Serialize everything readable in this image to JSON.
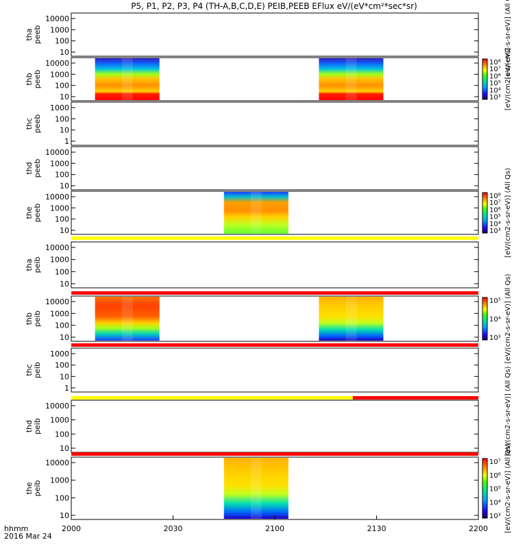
{
  "title": "P5, P1, P2, P3, P4 (TH-A,B,C,D,E) PEIB,PEEB EFlux eV/(eV*cm²*sec*sr)",
  "time_axis": {
    "ticks": [
      "2000",
      "2030",
      "2100",
      "2130",
      "2200"
    ],
    "corner_label_1": "hhmm",
    "corner_label_2": "2016 Mar 24"
  },
  "chart_data": {
    "type": "heatmap",
    "time_range": [
      "20:00",
      "22:00"
    ],
    "panels": [
      {
        "id": "tha-peeb",
        "label1": "tha",
        "label2": "peeb",
        "yticks": [
          "10000",
          "1000",
          "100",
          "10"
        ],
        "blocks": [],
        "flag_bar": null
      },
      {
        "id": "thb-peeb",
        "label1": "thb",
        "label2": "peeb",
        "yticks": [
          "10000",
          "1000",
          "100",
          "10"
        ],
        "blocks": [
          {
            "start": "20:07",
            "end": "20:26",
            "style": "electron-low-red"
          },
          {
            "start": "21:13",
            "end": "21:32",
            "style": "electron-low-red"
          }
        ],
        "colorbar": {
          "ticks": [
            "10⁸",
            "10⁷",
            "10⁶",
            "10⁵",
            "10⁴",
            "10³"
          ],
          "label": "[eV/(cm2-s-sr-eV)]"
        }
      },
      {
        "id": "thc-peeb",
        "label1": "thc",
        "label2": "peeb",
        "yticks": [
          "1000",
          "100",
          "10",
          "1"
        ],
        "blocks": []
      },
      {
        "id": "thd-peeb",
        "label1": "thd",
        "label2": "peeb",
        "yticks": [
          "10000",
          "1000",
          "100",
          "10"
        ],
        "blocks": []
      },
      {
        "id": "the-peeb",
        "label1": "the",
        "label2": "peeb",
        "yticks": [
          "10000",
          "1000",
          "100",
          "10"
        ],
        "blocks": [
          {
            "start": "20:45",
            "end": "21:04",
            "style": "electron-green"
          }
        ],
        "colorbar": {
          "ticks": [
            "10⁸",
            "10⁷",
            "10⁶",
            "10⁵",
            "10⁴",
            "10³"
          ],
          "label": "[eV/(cm2-s-sr-eV)] (All Qs)"
        }
      },
      {
        "id": "tha-peib",
        "label1": "tha",
        "label2": "peib",
        "yticks": [
          "10000",
          "1000",
          "100",
          "10"
        ],
        "blocks": []
      },
      {
        "id": "thb-peib",
        "label1": "thb",
        "label2": "peib",
        "yticks": [
          "10000",
          "1000",
          "100",
          "10"
        ],
        "blocks": [
          {
            "start": "20:07",
            "end": "20:26",
            "style": "ion-red"
          },
          {
            "start": "21:13",
            "end": "21:32",
            "style": "ion-yellow"
          }
        ],
        "colorbar": {
          "ticks": [
            "10⁵",
            "10⁴",
            "10³"
          ],
          "label": "[eV/(cm2-s-sr-eV)] (All Qs)"
        }
      },
      {
        "id": "thc-peib",
        "label1": "thc",
        "label2": "peib",
        "yticks": [
          "1000",
          "100",
          "10",
          "1"
        ],
        "blocks": []
      },
      {
        "id": "thd-peib",
        "label1": "thd",
        "label2": "peib",
        "yticks": [
          "10000",
          "1000",
          "100",
          "10"
        ],
        "blocks": []
      },
      {
        "id": "the-peib",
        "label1": "the",
        "label2": "peib",
        "yticks": [
          "10000",
          "1000",
          "100",
          "10"
        ],
        "blocks": [
          {
            "start": "20:45",
            "end": "21:04",
            "style": "ion-yellow"
          }
        ],
        "colorbar": {
          "ticks": [
            "10⁷",
            "10⁶",
            "10⁵",
            "10⁴",
            "10³"
          ],
          "label": "[eV/(cm2-s-sr-eV)] (All Qs)"
        }
      }
    ],
    "status_bars": [
      {
        "after_panel": "the-peeb",
        "segments": [
          {
            "start": "20:00",
            "end": "22:00",
            "color": "#ffff00"
          }
        ]
      },
      {
        "after_panel": "tha-peib",
        "segments": [
          {
            "start": "20:00",
            "end": "22:00",
            "color": "#ff0000"
          }
        ]
      },
      {
        "after_panel": "thb-peib",
        "segments": [
          {
            "start": "20:00",
            "end": "22:00",
            "color": "#ff0000"
          }
        ]
      },
      {
        "after_panel": "thc-peib",
        "segments": [
          {
            "start": "20:00",
            "end": "21:23",
            "color": "#ffff00"
          },
          {
            "start": "21:23",
            "end": "22:00",
            "color": "#ff0000"
          }
        ]
      },
      {
        "after_panel": "thd-peib",
        "segments": [
          {
            "start": "20:00",
            "end": "22:00",
            "color": "#ff0000"
          }
        ]
      }
    ],
    "colorbar_side_labels": [
      {
        "text": "[eV/(cm2-s-sr-eV)] (All Qs)",
        "span": "top"
      },
      {
        "text": "[eV/(cm2-s-sr-eV)] (All Qs)",
        "span": "bottom"
      }
    ]
  },
  "colors": {
    "rainbow": [
      "#1a0050",
      "#3a00b0",
      "#0030ff",
      "#00a0ff",
      "#00e0c0",
      "#30ff30",
      "#c8ff00",
      "#ffe000",
      "#ff9000",
      "#ff3000",
      "#e00000"
    ]
  }
}
